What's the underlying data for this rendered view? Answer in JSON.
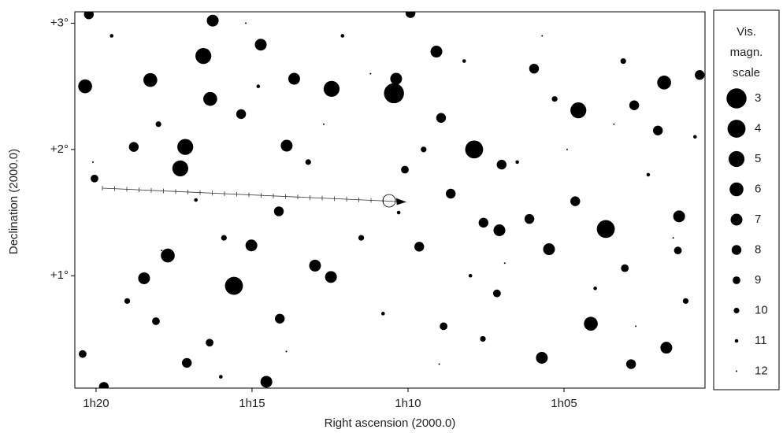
{
  "chart_data": {
    "type": "scatter",
    "xlabel": "Right ascension (2000.0)",
    "ylabel": "Declination (2000.0)",
    "xlim": [
      80.68,
      60.48
    ],
    "ylim": [
      0.11,
      3.09
    ],
    "xticks": [
      {
        "value": 80,
        "label": "1h20"
      },
      {
        "value": 75,
        "label": "1h15"
      },
      {
        "value": 70,
        "label": "1h10"
      },
      {
        "value": 65,
        "label": "1h05"
      }
    ],
    "yticks": [
      {
        "value": 3,
        "label": "+3°"
      },
      {
        "value": 2,
        "label": "+2°"
      },
      {
        "value": 1,
        "label": "+1°"
      }
    ],
    "color": "#000000",
    "x": [
      70.45,
      67.88,
      63.66,
      75.58,
      72.45,
      64.54,
      77.14,
      77.3,
      76.56,
      78.26,
      80.35,
      61.79,
      64.14,
      77.7,
      76.34,
      70.38,
      69.09,
      65.48,
      72.98,
      75.02,
      67.07,
      68.63,
      73.89,
      74.72,
      73.65,
      61.31,
      65.71,
      61.72,
      76.26,
      74.54,
      72.47,
      78.46,
      69.64,
      74.14,
      67.58,
      68.94,
      62.75,
      61.99,
      66.11,
      67.0,
      64.64,
      77.09,
      62.85,
      68.86,
      60.65,
      80.23,
      69.92,
      65.96,
      79.75,
      80.43,
      78.08,
      74.11,
      67.15,
      63.05,
      78.79,
      75.35,
      80.05,
      70.1,
      76.36,
      61.35,
      79.5,
      78.0,
      76.8,
      75.9,
      74.8,
      73.2,
      72.1,
      71.5,
      70.8,
      69.5,
      68.2,
      67.6,
      66.5,
      65.3,
      64.0,
      63.1,
      62.3,
      61.1,
      60.8,
      79.0,
      77.9,
      76.0,
      73.9,
      72.7,
      71.2,
      69.0,
      66.9,
      64.9,
      62.7,
      61.5,
      80.1,
      75.2,
      70.3,
      68.0,
      65.7,
      63.4
    ],
    "y": [
      2.445,
      2.0,
      1.37,
      0.92,
      2.48,
      2.31,
      2.02,
      1.85,
      2.74,
      2.55,
      2.5,
      2.53,
      0.62,
      1.16,
      2.4,
      2.56,
      2.775,
      1.21,
      1.08,
      1.24,
      1.36,
      1.65,
      2.03,
      2.83,
      2.56,
      1.47,
      0.35,
      0.43,
      3.02,
      0.16,
      0.99,
      0.98,
      1.23,
      1.51,
      1.42,
      2.25,
      2.35,
      2.15,
      1.45,
      1.88,
      1.59,
      0.31,
      0.3,
      0.6,
      2.59,
      3.07,
      3.08,
      2.64,
      0.12,
      0.38,
      0.64,
      0.66,
      0.86,
      1.06,
      2.02,
      2.28,
      1.77,
      1.84,
      0.47,
      1.2,
      2.9,
      2.2,
      1.6,
      1.3,
      2.5,
      1.9,
      2.9,
      1.3,
      0.7,
      2.0,
      2.7,
      0.5,
      1.9,
      2.4,
      0.9,
      2.7,
      1.8,
      0.8,
      2.1,
      0.8,
      1.2,
      0.2,
      0.4,
      2.2,
      2.6,
      0.3,
      1.1,
      2.0,
      0.6,
      1.3,
      1.9,
      3.0,
      1.5,
      1.0,
      2.9,
      2.2
    ],
    "magnitudes": [
      3,
      4,
      4,
      4,
      5,
      5,
      5,
      5,
      5,
      6,
      6,
      6,
      6,
      6,
      6,
      7,
      7,
      7,
      7,
      7,
      7,
      8,
      7,
      7,
      7,
      7,
      7,
      7,
      7,
      7,
      7,
      7,
      8,
      8,
      8,
      8,
      8,
      8,
      8,
      8,
      8,
      8,
      8,
      9,
      8,
      8,
      8,
      8,
      8,
      9,
      9,
      8,
      9,
      9,
      8,
      8,
      9,
      9,
      9,
      9,
      11,
      10,
      11,
      10,
      11,
      10,
      11,
      10,
      11,
      10,
      11,
      10,
      11,
      10,
      11,
      10,
      11,
      10,
      11,
      10,
      12,
      11,
      12,
      12,
      12,
      12,
      12,
      12,
      12,
      12,
      12,
      12,
      11,
      11,
      12,
      12
    ],
    "legend": {
      "title": "Vis. magn. scale",
      "magnitudes": [
        3,
        4,
        5,
        6,
        7,
        8,
        9,
        10,
        11,
        12
      ]
    }
  }
}
